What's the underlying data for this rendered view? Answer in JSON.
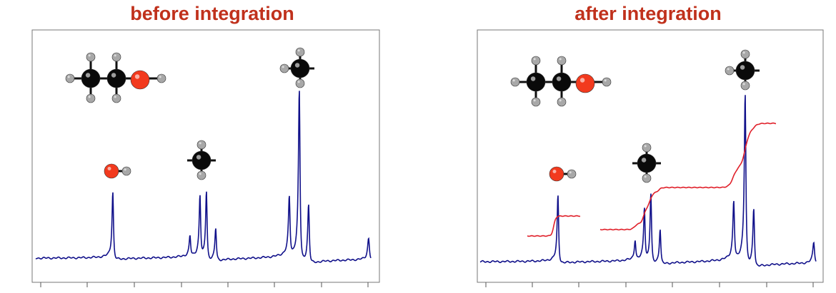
{
  "panels": [
    {
      "title": "before integration"
    },
    {
      "title": "after integration"
    }
  ]
}
